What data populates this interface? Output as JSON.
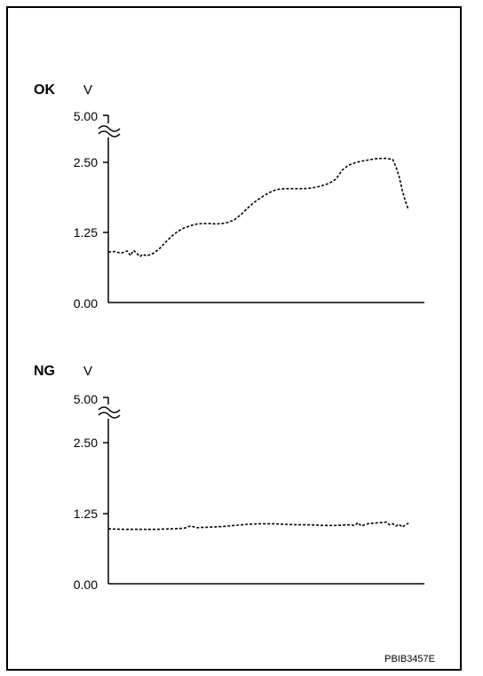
{
  "figure_code": "PBIB3457E",
  "chart_data": [
    {
      "type": "line",
      "title": "OK",
      "ylabel": "V",
      "xlabel": "",
      "yticks": [
        "5.00",
        "2.50",
        "1.25",
        "0.00"
      ],
      "ylim": [
        0,
        5.0
      ],
      "axis_break": true,
      "line_style": "dashed",
      "grid": false,
      "series": [
        {
          "x": [
            0,
            2,
            4,
            6,
            7,
            8,
            10,
            11,
            12,
            14,
            16,
            18,
            20,
            22,
            24,
            26,
            28,
            30,
            32,
            34,
            36,
            38,
            40,
            42,
            44,
            46,
            48,
            50,
            52,
            54,
            56,
            58,
            60,
            62,
            64,
            66,
            68,
            70,
            72,
            74,
            76,
            78,
            80,
            82,
            84,
            86,
            88,
            90,
            91,
            92,
            93,
            94,
            95
          ],
          "values": [
            0.9,
            0.91,
            0.88,
            0.92,
            0.84,
            0.93,
            0.82,
            0.86,
            0.83,
            0.87,
            0.95,
            1.07,
            1.18,
            1.27,
            1.33,
            1.37,
            1.4,
            1.41,
            1.41,
            1.4,
            1.41,
            1.43,
            1.48,
            1.57,
            1.68,
            1.78,
            1.86,
            1.93,
            1.99,
            2.02,
            2.03,
            2.03,
            2.03,
            2.03,
            2.04,
            2.06,
            2.09,
            2.13,
            2.2,
            2.36,
            2.45,
            2.49,
            2.52,
            2.54,
            2.56,
            2.57,
            2.57,
            2.55,
            2.42,
            2.25,
            2.0,
            1.8,
            1.65
          ]
        }
      ]
    },
    {
      "type": "line",
      "title": "NG",
      "ylabel": "V",
      "xlabel": "",
      "yticks": [
        "5.00",
        "2.50",
        "1.25",
        "0.00"
      ],
      "ylim": [
        0,
        5.0
      ],
      "axis_break": true,
      "line_style": "dashed",
      "grid": false,
      "series": [
        {
          "x": [
            0,
            5,
            10,
            15,
            20,
            24,
            26,
            28,
            32,
            36,
            40,
            44,
            48,
            52,
            56,
            60,
            64,
            68,
            72,
            76,
            78,
            79,
            80,
            81,
            82,
            84,
            86,
            88,
            89,
            90,
            91,
            92,
            93,
            94,
            95
          ],
          "values": [
            0.98,
            0.97,
            0.97,
            0.97,
            0.98,
            0.99,
            1.03,
            1.0,
            1.01,
            1.02,
            1.04,
            1.06,
            1.07,
            1.07,
            1.06,
            1.05,
            1.05,
            1.04,
            1.04,
            1.05,
            1.04,
            1.09,
            1.03,
            1.05,
            1.07,
            1.08,
            1.09,
            1.1,
            1.05,
            1.07,
            1.03,
            1.06,
            1.01,
            1.05,
            1.08
          ]
        }
      ]
    }
  ]
}
